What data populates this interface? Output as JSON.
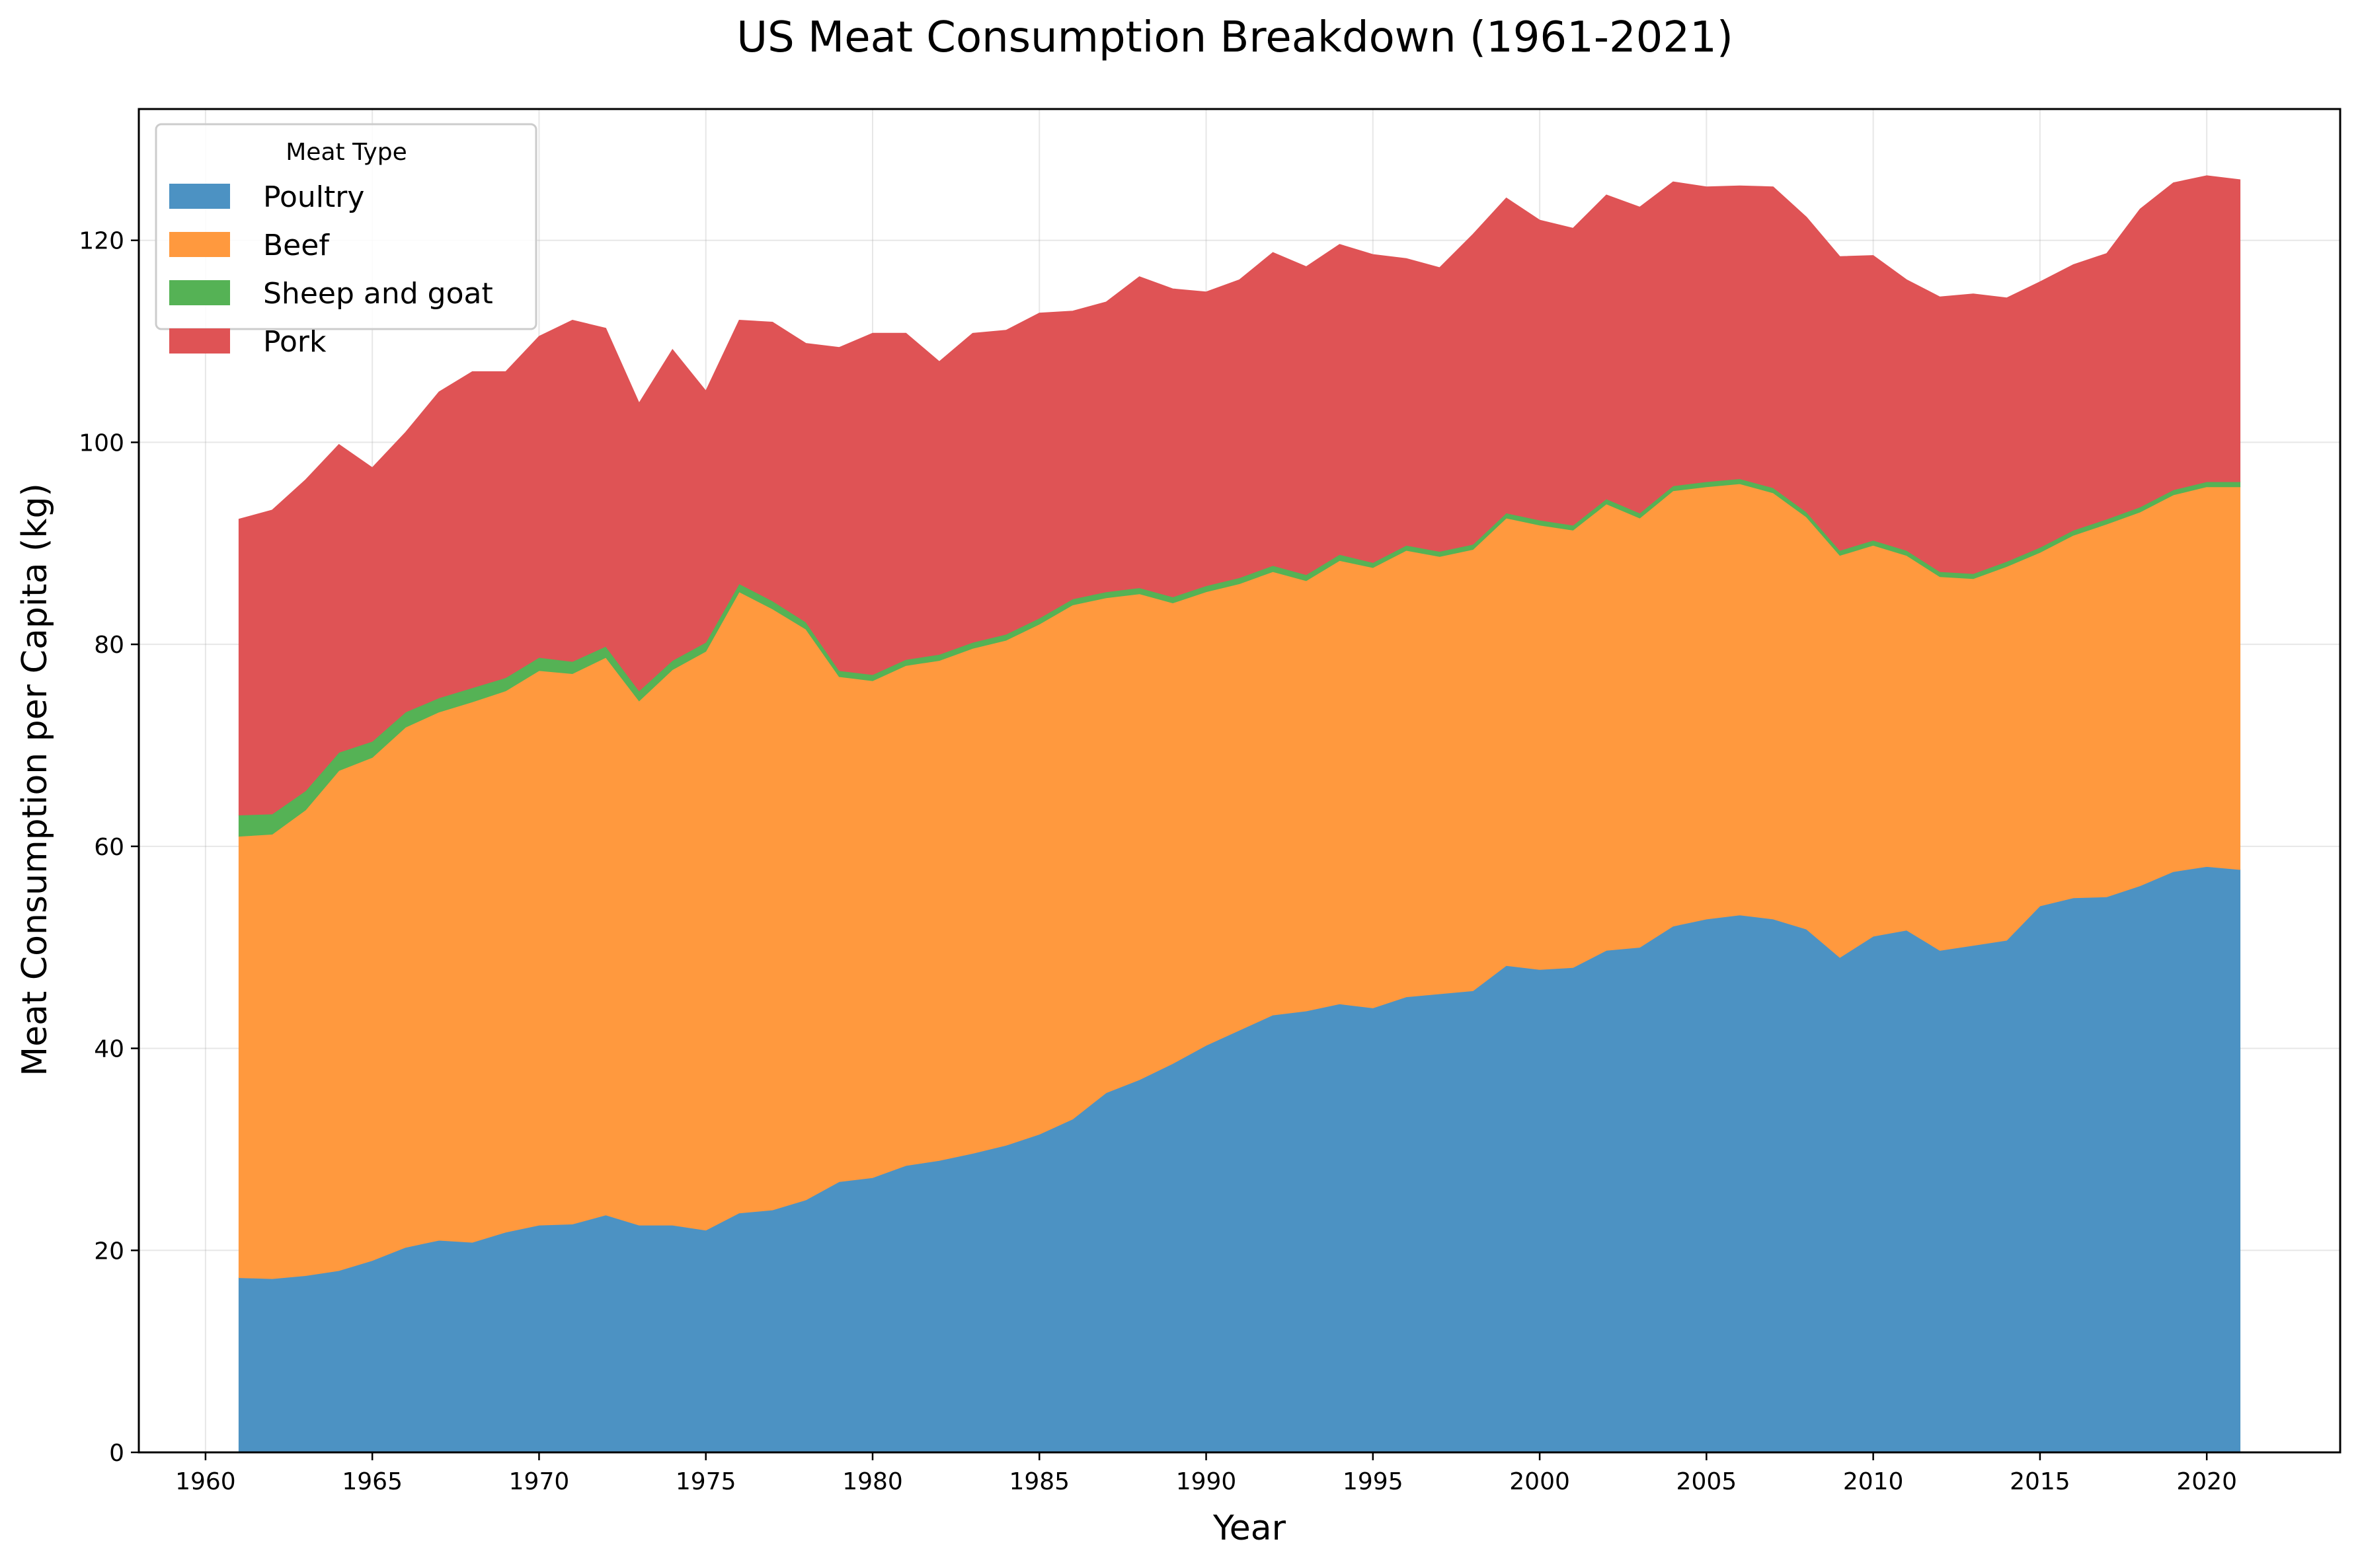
{
  "chart_data": {
    "type": "area",
    "stacked": true,
    "title": "US Meat Consumption Breakdown (1961-2021)",
    "xlabel": "Year",
    "ylabel": "Meat Consumption per Capita (kg)",
    "xlim": [
      1958,
      2024
    ],
    "ylim": [
      0,
      133
    ],
    "xticks": [
      1960,
      1965,
      1970,
      1975,
      1980,
      1985,
      1990,
      1995,
      2000,
      2005,
      2010,
      2015,
      2020
    ],
    "yticks": [
      0,
      20,
      40,
      60,
      80,
      100,
      120
    ],
    "grid": true,
    "legend": {
      "title": "Meat Type",
      "placement": "top-left"
    },
    "x": [
      1961,
      1962,
      1963,
      1964,
      1965,
      1966,
      1967,
      1968,
      1969,
      1970,
      1971,
      1972,
      1973,
      1974,
      1975,
      1976,
      1977,
      1978,
      1979,
      1980,
      1981,
      1982,
      1983,
      1984,
      1985,
      1986,
      1987,
      1988,
      1989,
      1990,
      1991,
      1992,
      1993,
      1994,
      1995,
      1996,
      1997,
      1998,
      1999,
      2000,
      2001,
      2002,
      2003,
      2004,
      2005,
      2006,
      2007,
      2008,
      2009,
      2010,
      2011,
      2012,
      2013,
      2014,
      2015,
      2016,
      2017,
      2018,
      2019,
      2020,
      2021
    ],
    "series": [
      {
        "name": "Poultry",
        "color": "#4c92c3",
        "values": [
          17.3,
          17.2,
          17.5,
          18.0,
          19.0,
          20.3,
          21.0,
          20.8,
          21.8,
          22.5,
          22.6,
          23.5,
          22.5,
          22.5,
          22.0,
          23.7,
          24.0,
          25.0,
          26.8,
          27.2,
          28.4,
          28.9,
          29.6,
          30.4,
          31.5,
          33.0,
          35.6,
          36.9,
          38.5,
          40.3,
          41.8,
          43.3,
          43.7,
          44.4,
          44.0,
          45.1,
          45.4,
          45.7,
          48.2,
          47.8,
          48.0,
          49.7,
          50.0,
          52.1,
          52.8,
          53.2,
          52.8,
          51.8,
          49.0,
          51.1,
          51.7,
          49.7,
          50.2,
          50.7,
          54.1,
          54.9,
          55.0,
          56.1,
          57.5,
          58.0,
          57.7
        ]
      },
      {
        "name": "Beef",
        "color": "#ff993e",
        "values": [
          43.7,
          44.0,
          46.1,
          49.5,
          49.8,
          51.5,
          52.3,
          53.5,
          53.6,
          54.9,
          54.5,
          55.2,
          51.9,
          55.0,
          57.3,
          61.5,
          59.5,
          56.5,
          50.0,
          49.2,
          49.5,
          49.5,
          50.0,
          50.0,
          50.5,
          50.9,
          49.0,
          48.1,
          45.6,
          44.9,
          44.2,
          43.9,
          42.6,
          43.9,
          43.6,
          44.2,
          43.3,
          43.7,
          44.3,
          44.0,
          43.3,
          44.2,
          42.5,
          43.1,
          42.8,
          42.7,
          42.2,
          40.8,
          39.8,
          38.7,
          37.1,
          37.0,
          36.3,
          37.0,
          35.0,
          35.9,
          36.9,
          37.0,
          37.3,
          37.6,
          37.9
        ]
      },
      {
        "name": "Sheep and goat",
        "color": "#55b255",
        "values": [
          2.1,
          2.0,
          1.9,
          1.8,
          1.6,
          1.5,
          1.4,
          1.4,
          1.3,
          1.3,
          1.2,
          1.1,
          1.0,
          0.9,
          0.9,
          0.8,
          0.8,
          0.7,
          0.6,
          0.6,
          0.6,
          0.6,
          0.6,
          0.6,
          0.6,
          0.6,
          0.6,
          0.6,
          0.6,
          0.6,
          0.6,
          0.6,
          0.6,
          0.6,
          0.5,
          0.5,
          0.5,
          0.5,
          0.5,
          0.5,
          0.5,
          0.5,
          0.5,
          0.5,
          0.5,
          0.5,
          0.5,
          0.5,
          0.5,
          0.5,
          0.5,
          0.5,
          0.5,
          0.5,
          0.5,
          0.5,
          0.5,
          0.5,
          0.5,
          0.5,
          0.5
        ]
      },
      {
        "name": "Pork",
        "color": "#df5355",
        "values": [
          29.3,
          30.1,
          30.8,
          30.5,
          27.1,
          27.7,
          30.3,
          31.3,
          30.3,
          31.8,
          33.8,
          31.5,
          28.5,
          30.8,
          24.9,
          26.1,
          27.6,
          27.6,
          32.0,
          33.8,
          32.3,
          29.0,
          30.6,
          30.1,
          30.2,
          28.5,
          28.7,
          30.8,
          30.5,
          29.1,
          29.5,
          31.0,
          30.5,
          30.7,
          30.5,
          28.4,
          28.1,
          30.7,
          31.2,
          29.7,
          29.4,
          30.1,
          30.3,
          30.1,
          29.2,
          29.0,
          29.8,
          29.2,
          29.1,
          28.2,
          26.8,
          27.2,
          27.7,
          26.1,
          26.3,
          26.3,
          26.3,
          29.5,
          30.4,
          30.3,
          29.9
        ]
      }
    ]
  }
}
